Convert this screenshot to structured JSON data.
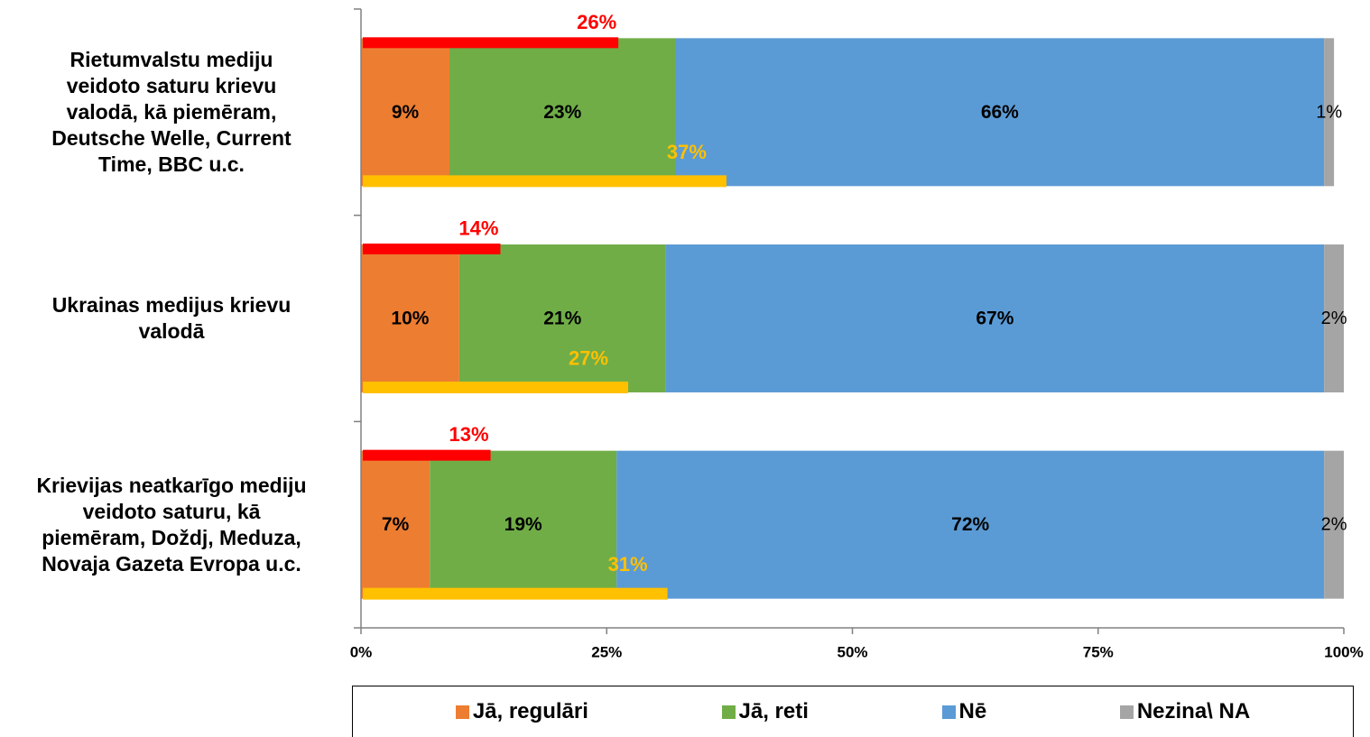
{
  "chart_data": {
    "type": "bar",
    "orientation": "horizontal",
    "stacked": true,
    "categories": [
      "Rietumvalstu mediju veidoto saturu krievu valodā, kā piemēram, Deutsche Welle, Current Time, BBC u.c.",
      "Ukrainas medijus krievu valodā",
      "Krievijas neatkarīgo mediju veidoto saturu, kā piemēram,  Doždj, Meduza, Novaja Gazeta Evropa u.c."
    ],
    "category_lines": [
      [
        "Rietumvalstu mediju",
        "veidoto saturu krievu",
        "valodā, kā piemēram,",
        "Deutsche Welle, Current",
        "Time, BBC u.c."
      ],
      [
        "Ukrainas medijus krievu",
        "valodā"
      ],
      [
        "Krievijas neatkarīgo mediju",
        "veidoto saturu, kā",
        "piemēram,  Doždj, Meduza,",
        "Novaja Gazeta Evropa u.c."
      ]
    ],
    "series": [
      {
        "name": "Jā, regulāri",
        "color": "#ED7D31",
        "values": [
          9,
          10,
          7
        ],
        "labels": [
          "9%",
          "10%",
          "7%"
        ]
      },
      {
        "name": "Jā, reti",
        "color": "#70AD47",
        "values": [
          23,
          21,
          19
        ],
        "labels": [
          "23%",
          "21%",
          "19%"
        ]
      },
      {
        "name": "Nē",
        "color": "#5B9BD5",
        "values": [
          66,
          67,
          72
        ],
        "labels": [
          "66%",
          "67%",
          "72%"
        ]
      },
      {
        "name": "Nezina\\ NA",
        "color": "#A5A5A5",
        "values": [
          1,
          2,
          2
        ],
        "labels": [
          "1%",
          "2%",
          "2%"
        ]
      }
    ],
    "overlays": [
      {
        "color": "#FF0000",
        "values": [
          26,
          14,
          13
        ],
        "labels": [
          "26%",
          "14%",
          "13%"
        ],
        "position": "top"
      },
      {
        "color": "#FFC000",
        "values": [
          37,
          27,
          31
        ],
        "labels": [
          "37%",
          "27%",
          "31%"
        ],
        "position": "bottom"
      }
    ],
    "xlim": [
      0,
      100
    ],
    "xticks": [
      "0%",
      "25%",
      "50%",
      "75%",
      "100%"
    ],
    "grid": false,
    "legend": "bottom"
  }
}
